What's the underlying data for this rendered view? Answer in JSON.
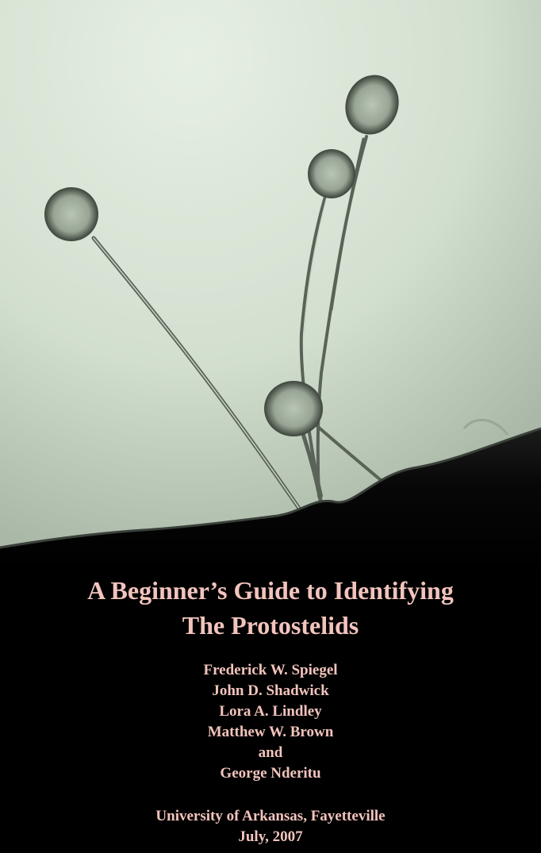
{
  "cover": {
    "title_lines": [
      "A Beginner’s Guide to Identifying",
      "The Protostelids"
    ],
    "authors": [
      "Frederick W. Spiegel",
      "John D. Shadwick",
      "Lora A. Lindley",
      "Matthew W. Brown",
      "and",
      "George Nderitu"
    ],
    "institution": "University of Arkansas, Fayetteville",
    "date": "July, 2007"
  },
  "colors": {
    "text": "#f2c4bd",
    "background": "#000000",
    "photo_background": "#d8e6d6"
  }
}
